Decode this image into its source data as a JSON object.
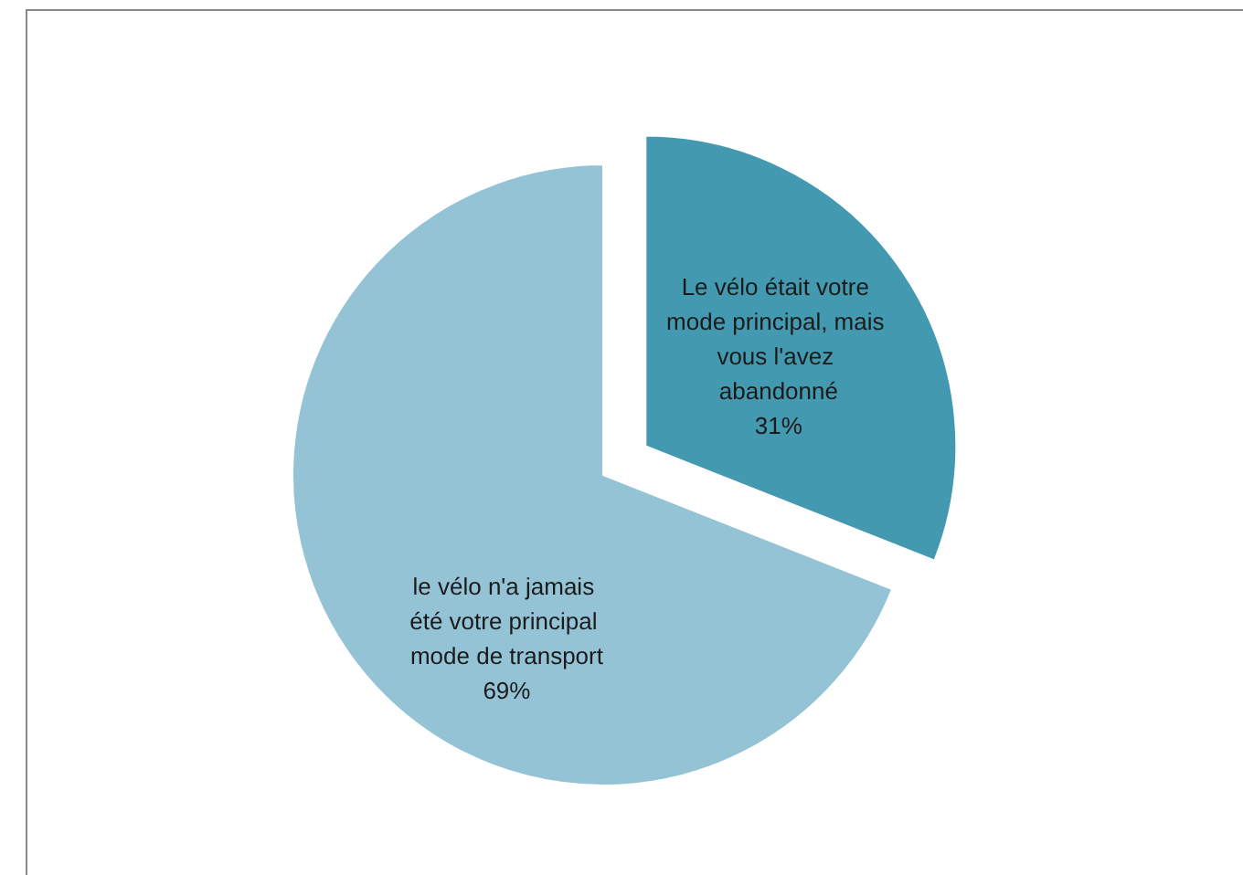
{
  "chart_data": {
    "type": "pie",
    "categories": [
      "Le vélo était votre mode principal, mais vous l'avez abandonné",
      "le vélo n'a jamais été votre principal mode de transport"
    ],
    "values": [
      31,
      69
    ],
    "colors": [
      "#4399b0",
      "#93c3d5"
    ],
    "value_labels": [
      "31%",
      "69%"
    ],
    "legend": false
  }
}
